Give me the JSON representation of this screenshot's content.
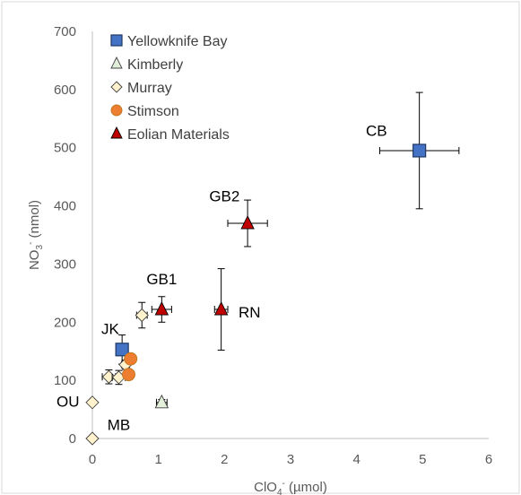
{
  "chart_data": {
    "type": "scatter",
    "xlabel": "ClO4- (µmol)",
    "ylabel": "NO3- (nmol)",
    "xlim": [
      0,
      6
    ],
    "ylim": [
      0,
      700
    ],
    "xticks": [
      "0",
      "1",
      "2",
      "3",
      "4",
      "5",
      "6"
    ],
    "yticks": [
      "0",
      "100",
      "200",
      "300",
      "400",
      "500",
      "600",
      "700"
    ],
    "grid": false,
    "legend_position": "top-left",
    "series": [
      {
        "name": "Yellowknife Bay",
        "marker": "square",
        "color": "#4472C4",
        "points": [
          {
            "x": 4.95,
            "y": 495,
            "xerr": 0.6,
            "yerr": 100
          },
          {
            "x": 0.45,
            "y": 153,
            "xerr": 0.06,
            "yerr": 25
          }
        ]
      },
      {
        "name": "Kimberly",
        "marker": "triangle",
        "color": "#E2EFDA",
        "points": [
          {
            "x": 1.05,
            "y": 62,
            "xerr": 0.08,
            "yerr": 5
          }
        ]
      },
      {
        "name": "Murray",
        "marker": "diamond",
        "color": "#FFF2CC",
        "points": [
          {
            "x": 0.0,
            "y": 0
          },
          {
            "x": 0.0,
            "y": 62
          },
          {
            "x": 0.25,
            "y": 106,
            "xerr": 0.1,
            "yerr": 12
          },
          {
            "x": 0.4,
            "y": 105,
            "xerr": 0.1,
            "yerr": 12
          },
          {
            "x": 0.5,
            "y": 127,
            "xerr": 0.06,
            "yerr": 8
          },
          {
            "x": 0.75,
            "y": 212,
            "xerr": 0.08,
            "yerr": 22
          }
        ]
      },
      {
        "name": "Stimson",
        "marker": "circle",
        "color": "#ED7D31",
        "points": [
          {
            "x": 0.58,
            "y": 137,
            "xerr": 0.05,
            "yerr": 8
          },
          {
            "x": 0.55,
            "y": 110,
            "xerr": 0.05,
            "yerr": 8
          }
        ]
      },
      {
        "name": "Eolian Materials",
        "marker": "triangle",
        "color": "#C00000",
        "points": [
          {
            "x": 2.35,
            "y": 370,
            "xerr": 0.3,
            "yerr": 40
          },
          {
            "x": 1.05,
            "y": 222,
            "xerr": 0.15,
            "yerr": 22
          },
          {
            "x": 1.95,
            "y": 222,
            "xerr": 0.1,
            "yerr": 70
          }
        ]
      }
    ],
    "annotations": [
      {
        "text": "CB",
        "x": 4.3,
        "y": 520
      },
      {
        "text": "GB2",
        "x": 2.0,
        "y": 408
      },
      {
        "text": "GB1",
        "x": 1.05,
        "y": 265
      },
      {
        "text": "RN",
        "x": 2.38,
        "y": 208
      },
      {
        "text": "JK",
        "x": 0.27,
        "y": 180
      },
      {
        "text": "OU",
        "x": -0.37,
        "y": 55
      },
      {
        "text": "MB",
        "x": 0.4,
        "y": 15
      }
    ]
  }
}
